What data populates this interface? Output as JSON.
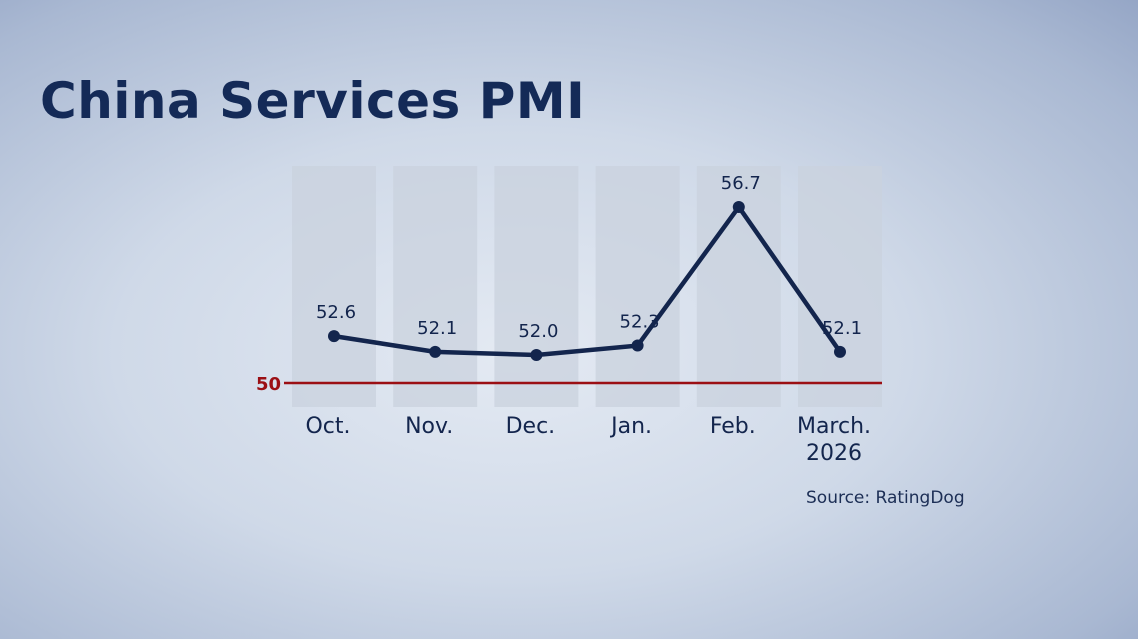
{
  "title": "China Services PMI",
  "source": "Source: RatingDog",
  "colors": {
    "line": "#13254d",
    "reference": "#9b0f14",
    "column": "#c9d1dd"
  },
  "chart_data": {
    "type": "line",
    "title": "China Services PMI",
    "categories": [
      "Oct.",
      "Nov.",
      "Dec.",
      "Jan.",
      "Feb.",
      "March. 2026"
    ],
    "category_lines": [
      [
        "Oct."
      ],
      [
        "Nov."
      ],
      [
        "Dec."
      ],
      [
        "Jan."
      ],
      [
        "Feb."
      ],
      [
        "March.",
        "2026"
      ]
    ],
    "values": [
      52.6,
      52.1,
      52.0,
      52.3,
      56.7,
      52.1
    ],
    "data_labels": [
      "52.6",
      "52.1",
      "52.0",
      "52.3",
      "56.7",
      "52.1"
    ],
    "reference_line": {
      "value": 50,
      "label": "50"
    },
    "xlabel": "",
    "ylabel": "",
    "grid": false
  }
}
